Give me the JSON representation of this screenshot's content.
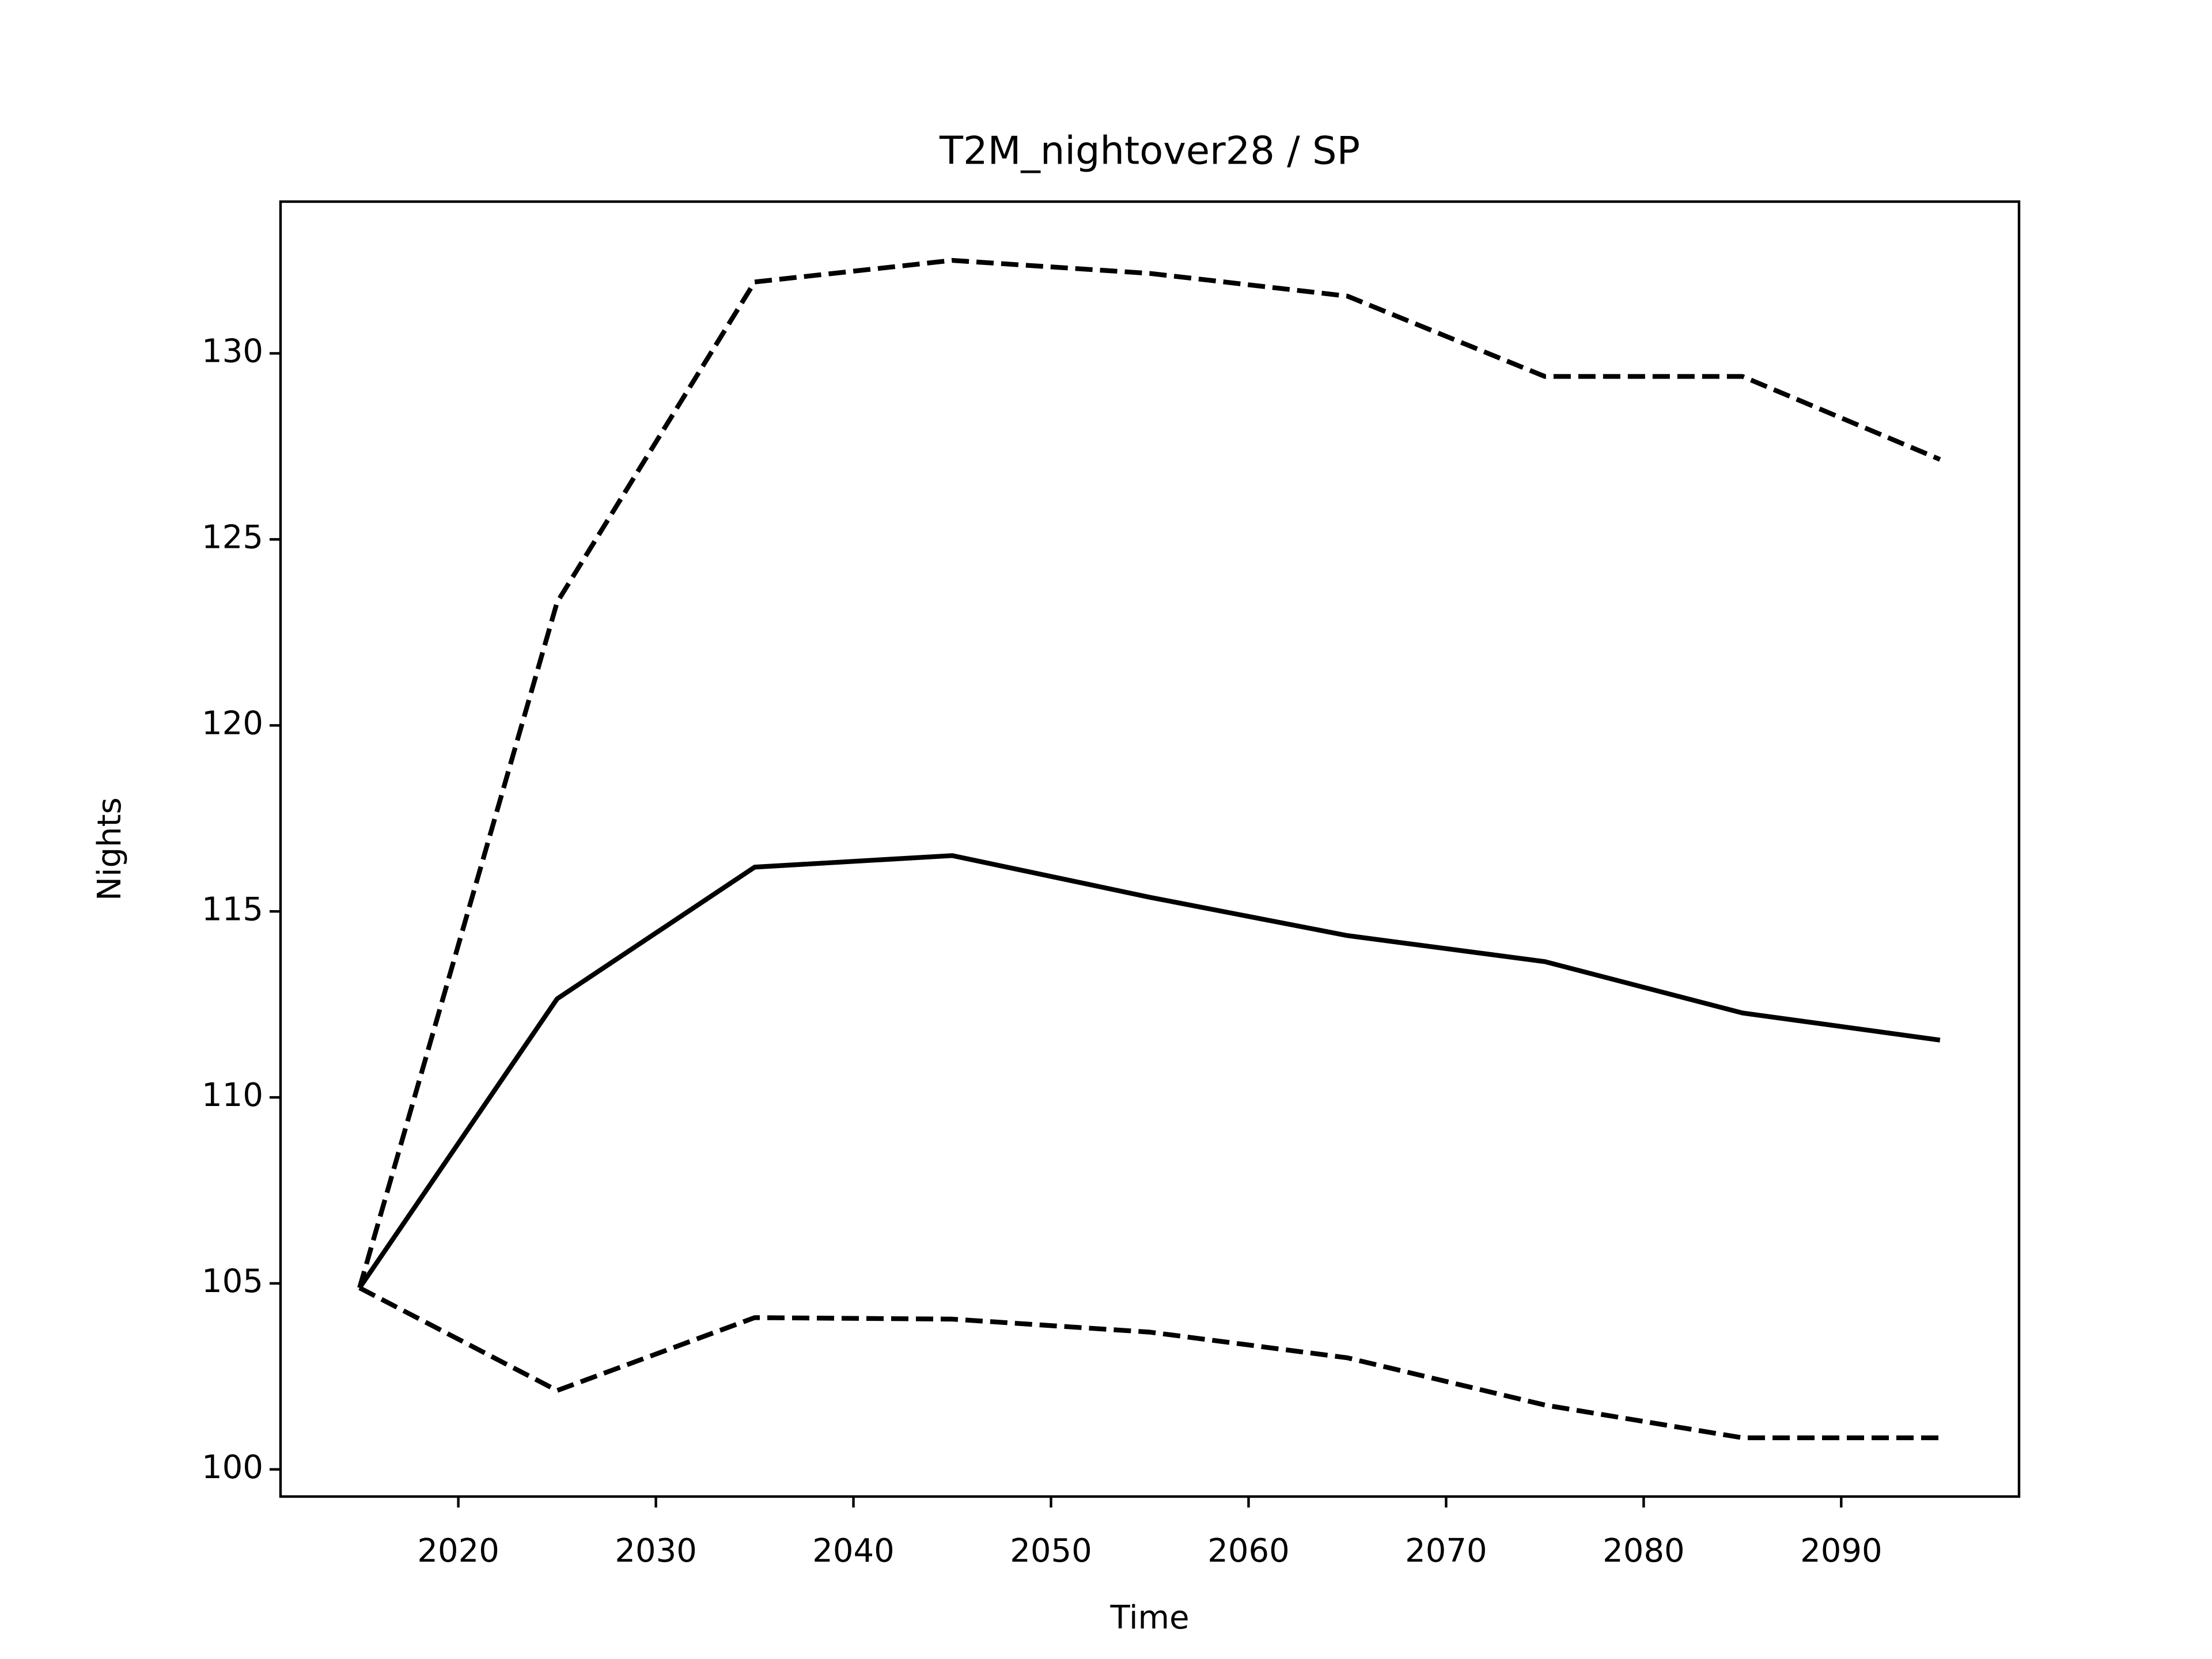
{
  "chart_data": {
    "type": "line",
    "title": "T2M_nightover28 / SP",
    "xlabel": "Time",
    "ylabel": "Nights",
    "x": [
      2015,
      2025,
      2035,
      2045,
      2055,
      2065,
      2075,
      2085,
      2095
    ],
    "series": [
      {
        "color": "#000000",
        "linestyle": "solid",
        "values": [
          104.88,
          112.65,
          116.19,
          116.5,
          115.38,
          114.35,
          113.65,
          112.27,
          111.54
        ]
      },
      {
        "color": "#000000",
        "linestyle": "dashed",
        "values": [
          104.88,
          123.31,
          131.92,
          132.5,
          132.15,
          131.54,
          129.38,
          129.38,
          127.15
        ]
      },
      {
        "color": "#000000",
        "linestyle": "dashed",
        "values": [
          104.88,
          102.12,
          104.08,
          104.04,
          103.69,
          103.0,
          101.73,
          100.85,
          100.85
        ]
      }
    ],
    "xlim": [
      2011,
      2099
    ],
    "xticks": [
      2020,
      2030,
      2040,
      2050,
      2060,
      2070,
      2080,
      2090
    ],
    "ylim": [
      99.27,
      134.08
    ],
    "yticks": [
      100,
      105,
      110,
      115,
      120,
      125,
      130
    ],
    "grid": false
  }
}
